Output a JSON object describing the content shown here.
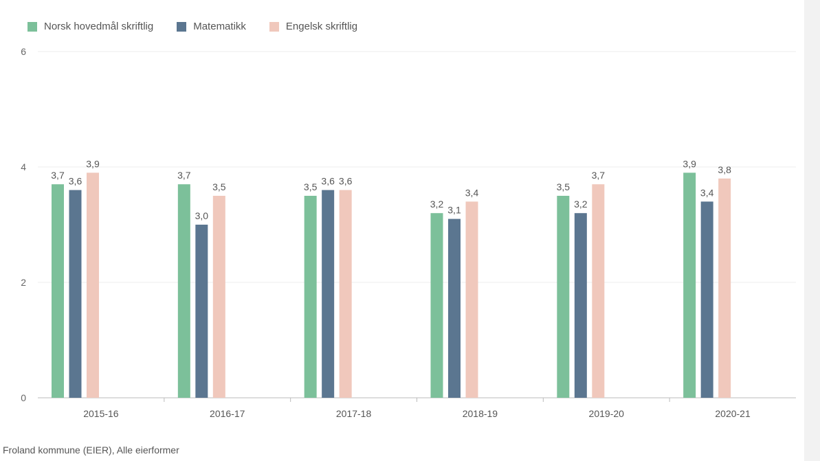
{
  "chart_data": {
    "type": "bar",
    "categories": [
      "2015-16",
      "2016-17",
      "2017-18",
      "2018-19",
      "2019-20",
      "2020-21"
    ],
    "series": [
      {
        "name": "Norsk hovedmål skriftlig",
        "color": "#7cc09a",
        "values": [
          3.7,
          3.7,
          3.5,
          3.2,
          3.5,
          3.9
        ],
        "labels": [
          "3,7",
          "3,7",
          "3,5",
          "3,2",
          "3,5",
          "3,9"
        ]
      },
      {
        "name": "Matematikk",
        "color": "#5b7690",
        "values": [
          3.6,
          3.0,
          3.6,
          3.1,
          3.2,
          3.4
        ],
        "labels": [
          "3,6",
          "3,0",
          "3,6",
          "3,1",
          "3,2",
          "3,4"
        ]
      },
      {
        "name": "Engelsk skriftlig",
        "color": "#f0c8bc",
        "values": [
          3.9,
          3.5,
          3.6,
          3.4,
          3.7,
          3.8
        ],
        "labels": [
          "3,9",
          "3,5",
          "3,6",
          "3,4",
          "3,7",
          "3,8"
        ]
      }
    ],
    "ylim": [
      0,
      6
    ],
    "yticks": [
      "0",
      "2",
      "4",
      "6"
    ],
    "grid": true,
    "legend": "top-left"
  },
  "footer": "Froland kommune (EIER), Alle eierformer"
}
